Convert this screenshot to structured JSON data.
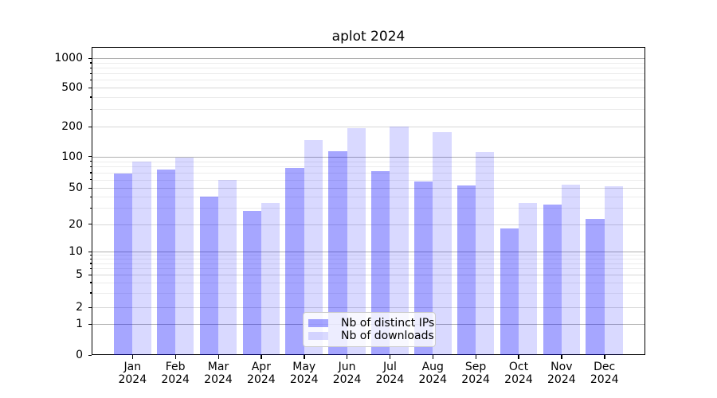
{
  "title": "aplot 2024",
  "colors": {
    "bar_base": "#0000ff",
    "ips_alpha": 0.35,
    "downloads_alpha": 0.15,
    "grid_major": "#b0b0b0",
    "grid_sub": "#d7d7d7",
    "grid_minor": "#ececec",
    "axis": "#000000",
    "legend_border": "#cccccc"
  },
  "legend": {
    "items": [
      {
        "label": "Nb of distinct IPs",
        "alpha": 0.35
      },
      {
        "label": "Nb of downloads",
        "alpha": 0.15
      }
    ]
  },
  "chart_data": {
    "type": "bar",
    "title": "aplot 2024",
    "categories": [
      "Jan",
      "Feb",
      "Mar",
      "Apr",
      "May",
      "Jun",
      "Jul",
      "Aug",
      "Sep",
      "Oct",
      "Nov",
      "Dec"
    ],
    "year_label": "2024",
    "series": [
      {
        "name": "Nb of distinct IPs",
        "values": [
          68,
          75,
          40,
          28,
          78,
          113,
          72,
          58,
          53,
          18,
          33,
          23
        ]
      },
      {
        "name": "Nb of downloads",
        "values": [
          90,
          97,
          60,
          34,
          145,
          193,
          200,
          176,
          110,
          34,
          54,
          52
        ]
      }
    ],
    "yscale": "symlog",
    "yticks": [
      0,
      1,
      2,
      5,
      10,
      20,
      50,
      100,
      200,
      500,
      1000
    ],
    "yticks_minor": [
      3,
      4,
      6,
      7,
      8,
      9,
      30,
      40,
      60,
      70,
      80,
      90,
      300,
      400,
      600,
      700,
      800,
      900
    ],
    "ylim": [
      0,
      1200
    ],
    "grid": true,
    "legend_position": "lower center"
  }
}
